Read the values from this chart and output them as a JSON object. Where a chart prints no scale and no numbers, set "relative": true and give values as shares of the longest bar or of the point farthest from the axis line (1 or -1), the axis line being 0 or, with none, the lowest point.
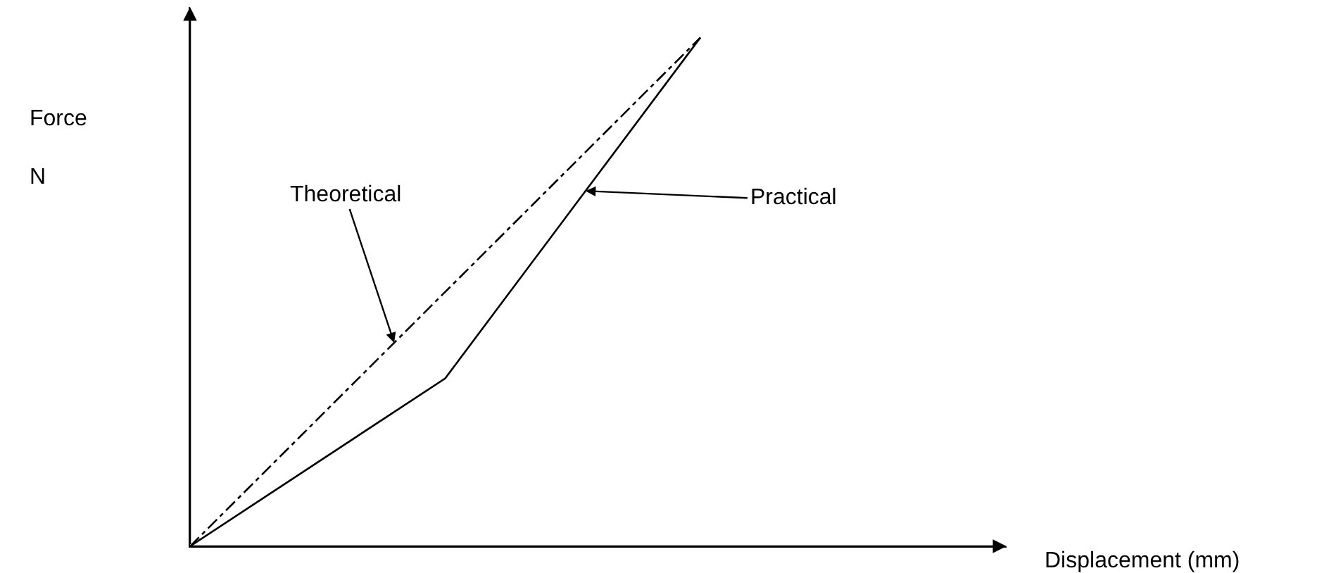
{
  "chart_data": {
    "type": "line",
    "relative": true,
    "categories": [
      null,
      null,
      null
    ],
    "xlabel": "Displacement (mm)",
    "ylabel": "Force\nN",
    "legend": false,
    "marker": "none",
    "series": [
      {
        "color": "#000000",
        "values": [
          0,
          0.5,
          1
        ],
        "line_style": "dashed"
      },
      {
        "color": "#000000",
        "values": [
          0,
          0.33,
          1
        ],
        "line_style": "solid"
      }
    ],
    "annotations": [
      "Theoretical",
      "Practical"
    ]
  }
}
